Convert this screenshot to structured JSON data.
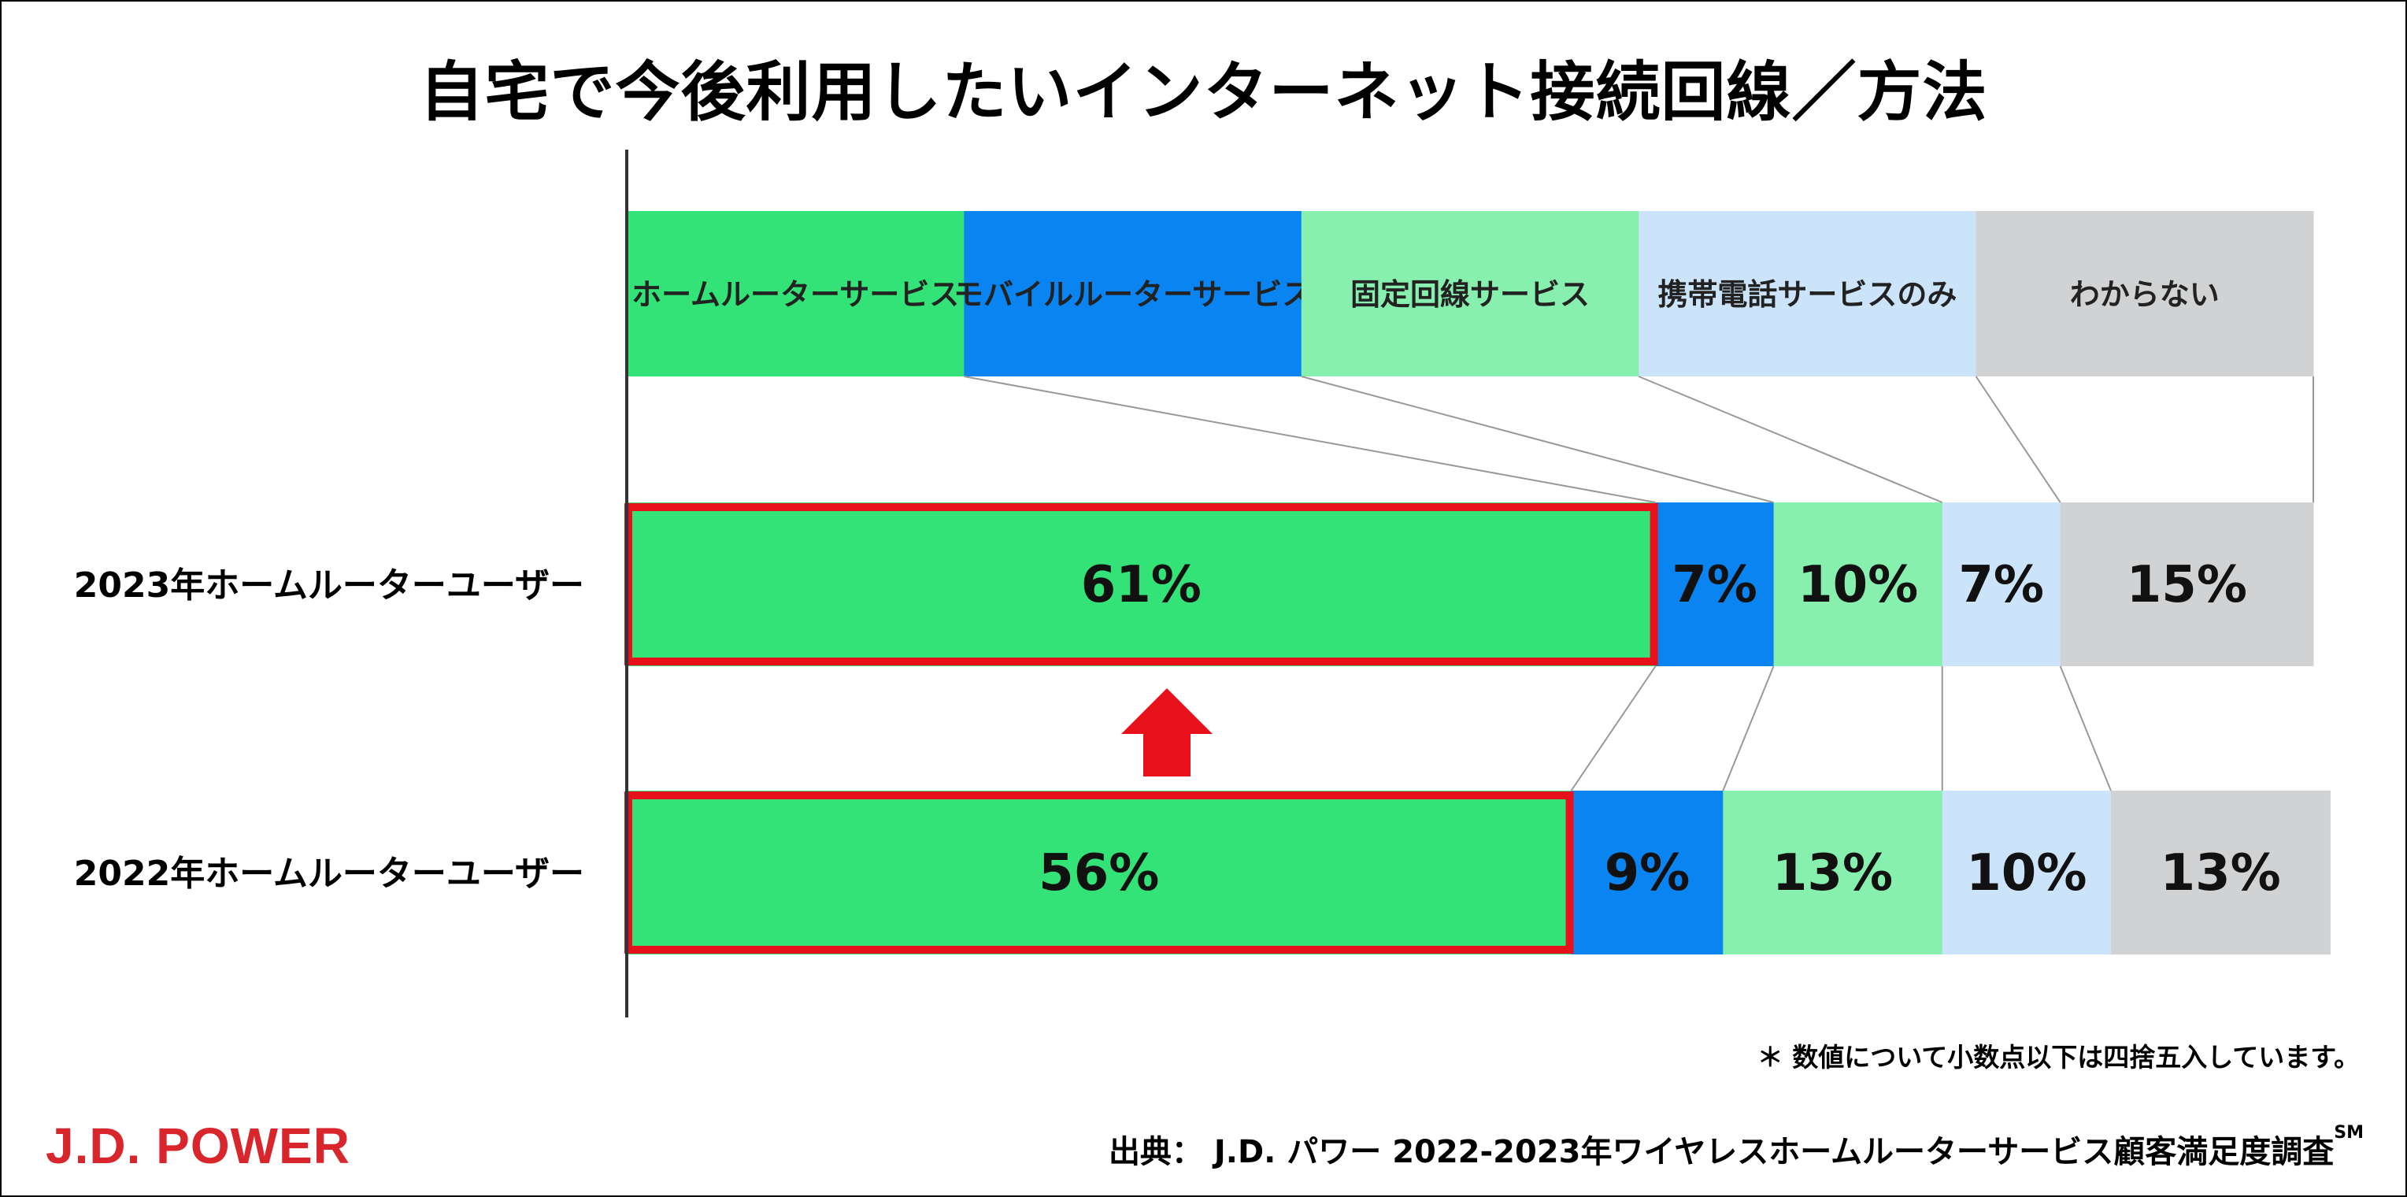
{
  "title": "自宅で今後利用したいインターネット接続回線／方法",
  "chart_data": {
    "type": "bar",
    "orientation": "horizontal",
    "stacked": true,
    "unit": "%",
    "title": "自宅で今後利用したいインターネット接続回線／方法",
    "categories": [
      "2023年ホームルーターユーザー",
      "2022年ホームルーターユーザー"
    ],
    "series": [
      {
        "name": "ホームルーターサービス",
        "color": "#33e377",
        "values": [
          61,
          56
        ]
      },
      {
        "name": "モバイルルーターサービス",
        "color": "#0a84f0",
        "values": [
          7,
          9
        ]
      },
      {
        "name": "固定回線サービス",
        "color": "#88f0ae",
        "values": [
          10,
          13
        ]
      },
      {
        "name": "携帯電話サービスのみ",
        "color": "#cce4fa",
        "values": [
          7,
          10
        ]
      },
      {
        "name": "わからない",
        "color": "#d0d2d3",
        "values": [
          15,
          13
        ]
      }
    ],
    "value_labels": [
      [
        "61%",
        "7%",
        "10%",
        "7%",
        "15%"
      ],
      [
        "56%",
        "9%",
        "13%",
        "10%",
        "13%"
      ]
    ],
    "xlim": [
      0,
      100
    ],
    "legend_position": "top",
    "highlight": {
      "series": "ホームルーターサービス",
      "color": "#e8101a",
      "arrow": "up"
    }
  },
  "footnote": "＊ 数値について小数点以下は四捨五入しています。",
  "source": "出典： J.D. パワー 2022-2023年ワイヤレスホームルーターサービス顧客満足度調査",
  "source_mark": "SM",
  "logo_text": "J.D. POWER"
}
